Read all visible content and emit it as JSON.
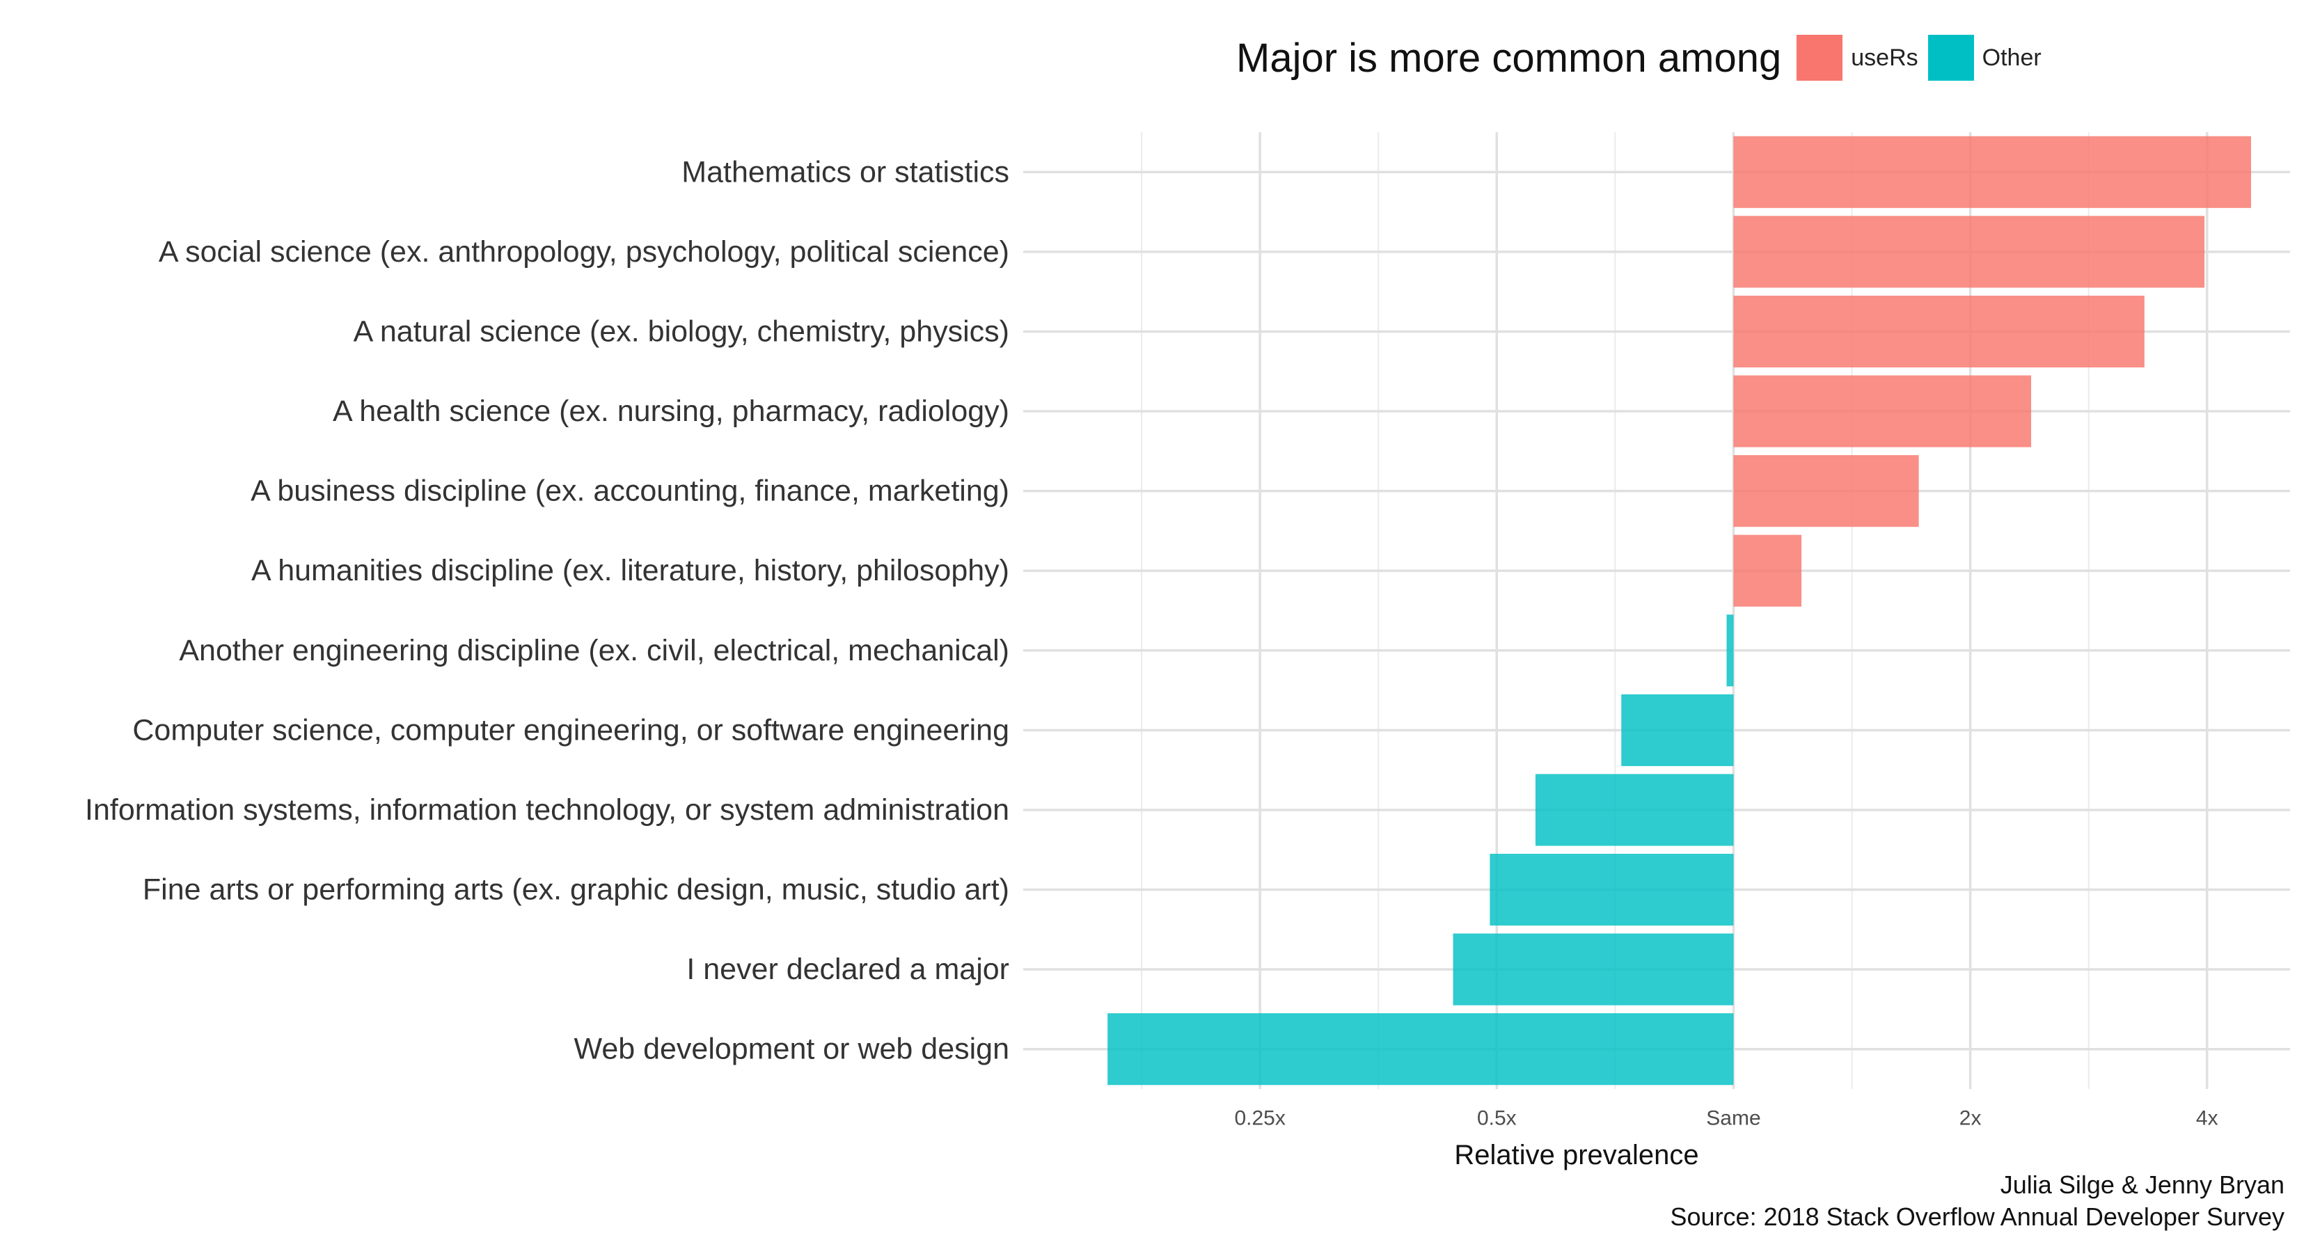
{
  "legend": {
    "title": "Major is more common among",
    "items": [
      {
        "label": "useRs",
        "color": "#F8766D"
      },
      {
        "label": "Other",
        "color": "#00BFC4"
      }
    ]
  },
  "caption": {
    "line1": "Julia Silge & Jenny Bryan",
    "line2": "Source: 2018 Stack Overflow Annual Developer Survey"
  },
  "chart_data": {
    "type": "bar",
    "orientation": "horizontal",
    "scale": "log2",
    "xlabel": "Relative prevalence",
    "ylabel": "",
    "xlim": [
      0.125,
      5.1
    ],
    "xticks": [
      {
        "value": 0.25,
        "label": "0.25x"
      },
      {
        "value": 0.5,
        "label": "0.5x"
      },
      {
        "value": 1,
        "label": "Same"
      },
      {
        "value": 2,
        "label": "2x"
      },
      {
        "value": 4,
        "label": "4x"
      }
    ],
    "grid": true,
    "legend_position": "top",
    "categories": [
      "Mathematics or statistics",
      "A social science (ex. anthropology, psychology, political science)",
      "A natural science (ex. biology, chemistry, physics)",
      "A health science (ex. nursing, pharmacy, radiology)",
      "A business discipline (ex. accounting, finance, marketing)",
      "A humanities discipline (ex. literature, history, philosophy)",
      "Another engineering discipline (ex. civil, electrical, mechanical)",
      "Computer science, computer engineering, or software engineering",
      "Information systems, information technology, or system administration",
      "Fine arts or performing arts (ex. graphic design, music, studio art)",
      "I never declared a major",
      "Web development or web design"
    ],
    "values": [
      4.55,
      3.97,
      3.33,
      2.39,
      1.72,
      1.22,
      0.98,
      0.72,
      0.56,
      0.49,
      0.44,
      0.16
    ],
    "groups": [
      "useRs",
      "useRs",
      "useRs",
      "useRs",
      "useRs",
      "useRs",
      "Other",
      "Other",
      "Other",
      "Other",
      "Other",
      "Other"
    ]
  }
}
